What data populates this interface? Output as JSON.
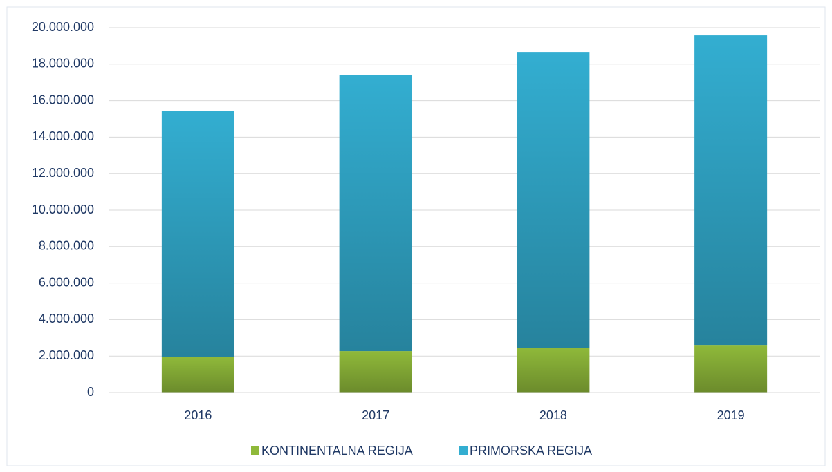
{
  "chart_data": {
    "type": "bar",
    "stacked": true,
    "categories": [
      "2016",
      "2017",
      "2018",
      "2019"
    ],
    "series": [
      {
        "name": "KONTINENTALNA REGIJA",
        "color": "#8fb93a",
        "values": [
          1950000,
          2270000,
          2460000,
          2610000
        ]
      },
      {
        "name": "PRIMORSKA REGIJA",
        "color": "#33aed1",
        "values": [
          13500000,
          15150000,
          16210000,
          16970000
        ]
      }
    ],
    "ylim": [
      0,
      20000000
    ],
    "yticks": [
      0,
      {
        "value": 2000000,
        "label": "2.000.000"
      },
      {
        "value": 4000000,
        "label": "4.000.000"
      },
      {
        "value": 6000000,
        "label": "6.000.000"
      },
      {
        "value": 8000000,
        "label": "8.000.000"
      },
      {
        "value": 10000000,
        "label": "10.000.000"
      },
      {
        "value": 12000000,
        "label": "12.000.000"
      },
      {
        "value": 14000000,
        "label": "14.000.000"
      },
      {
        "value": 16000000,
        "label": "16.000.000"
      },
      {
        "value": 18000000,
        "label": "18.000.000"
      },
      {
        "value": 20000000,
        "label": "20.000.000"
      }
    ],
    "grid": true,
    "legend": "bottom"
  }
}
